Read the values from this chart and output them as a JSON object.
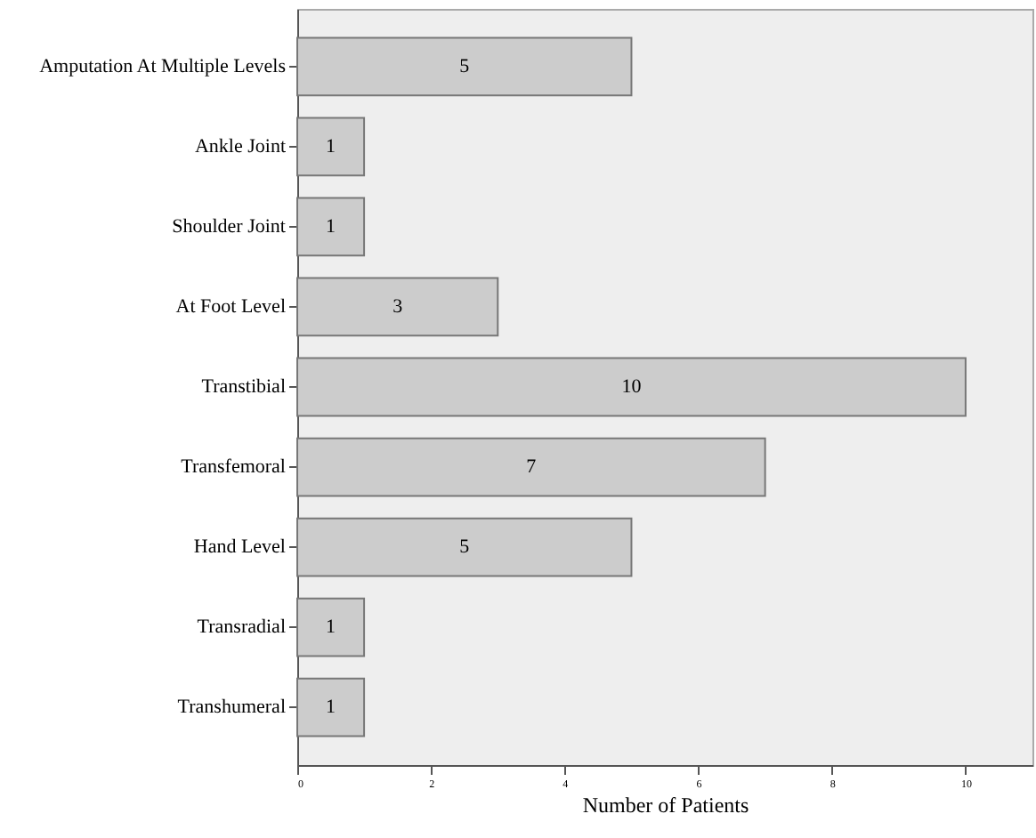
{
  "chart_data": {
    "type": "bar",
    "orientation": "horizontal",
    "xlabel": "Number of Patients",
    "categories": [
      "Amputation At Multiple Levels",
      "Ankle Joint",
      "Shoulder Joint",
      "At Foot Level",
      "Transtibial",
      "Transfemoral",
      "Hand Level",
      "Transradial",
      "Transhumeral"
    ],
    "values": [
      5,
      1,
      1,
      3,
      10,
      7,
      5,
      1,
      1
    ],
    "color": "#cccccc",
    "xlim": [
      0,
      11
    ],
    "xticks": [
      0,
      2,
      4,
      6,
      8,
      10
    ],
    "grid": false,
    "data_labels": true
  }
}
